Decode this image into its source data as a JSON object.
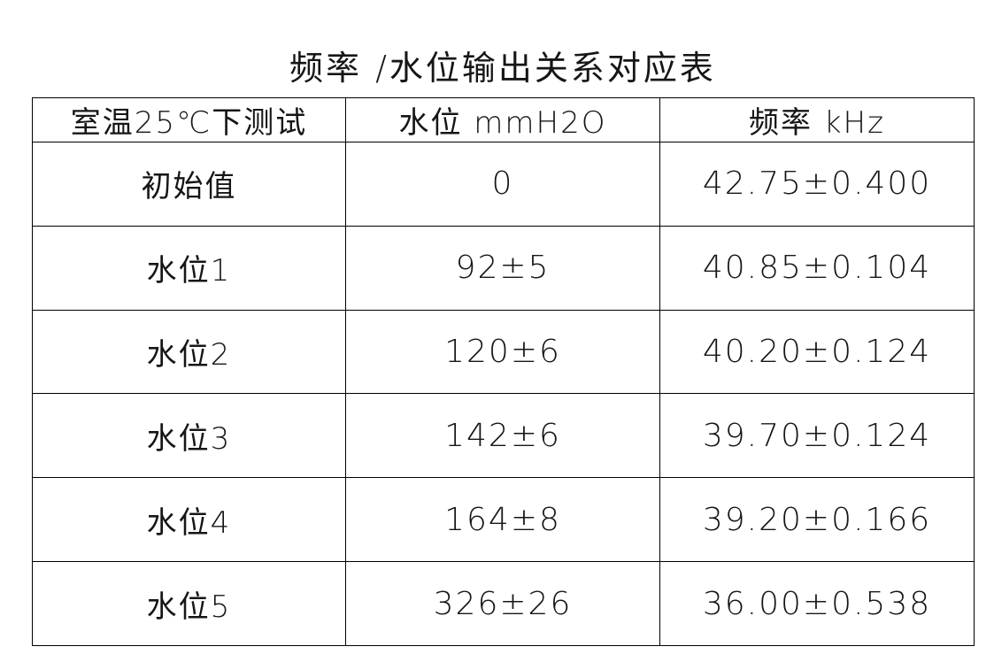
{
  "page": {
    "title": "频率 /水位输出关系对应表"
  },
  "table": {
    "columns": [
      {
        "label": "室温25℃下测试"
      },
      {
        "label": "水位 mmH2O"
      },
      {
        "label": "频率 kHz"
      }
    ],
    "rows": [
      {
        "label": "初始值",
        "water_level": "0",
        "frequency": "42.75±0.400"
      },
      {
        "label": "水位1",
        "water_level": "92±5",
        "frequency": "40.85±0.104"
      },
      {
        "label": "水位2",
        "water_level": "120±6",
        "frequency": "40.20±0.124"
      },
      {
        "label": "水位3",
        "water_level": "142±6",
        "frequency": "39.70±0.124"
      },
      {
        "label": "水位4",
        "water_level": "164±8",
        "frequency": "39.20±0.166"
      },
      {
        "label": "水位5",
        "water_level": "326±26",
        "frequency": "36.00±0.538"
      }
    ]
  },
  "colors": {
    "background": "#ffffff",
    "line": "#000000",
    "text": "#161616"
  }
}
